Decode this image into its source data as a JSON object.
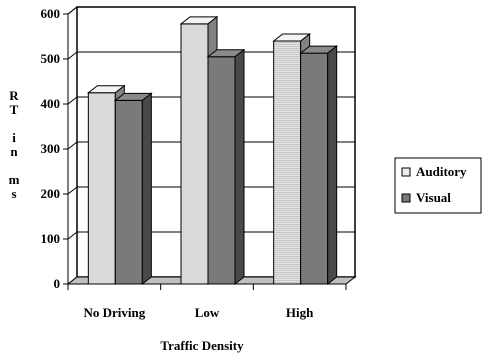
{
  "chart_data": {
    "type": "bar",
    "title": "",
    "xlabel": "Traffic Density",
    "ylabel": "RT in ms",
    "ylabel_lines": [
      "R",
      "T",
      "",
      "i",
      "n",
      "",
      "m",
      "s"
    ],
    "categories": [
      "No Driving",
      "Low",
      "High"
    ],
    "series": [
      {
        "name": "Auditory",
        "values": [
          425,
          578,
          540
        ],
        "color": "#d9d9d9"
      },
      {
        "name": "Visual",
        "values": [
          408,
          505,
          513
        ],
        "color": "#7a7a7a"
      }
    ],
    "ylim": [
      0,
      600
    ],
    "yticks": [
      0,
      100,
      200,
      300,
      400,
      500,
      600
    ],
    "grid": true,
    "legend": "right",
    "three_d": true
  }
}
